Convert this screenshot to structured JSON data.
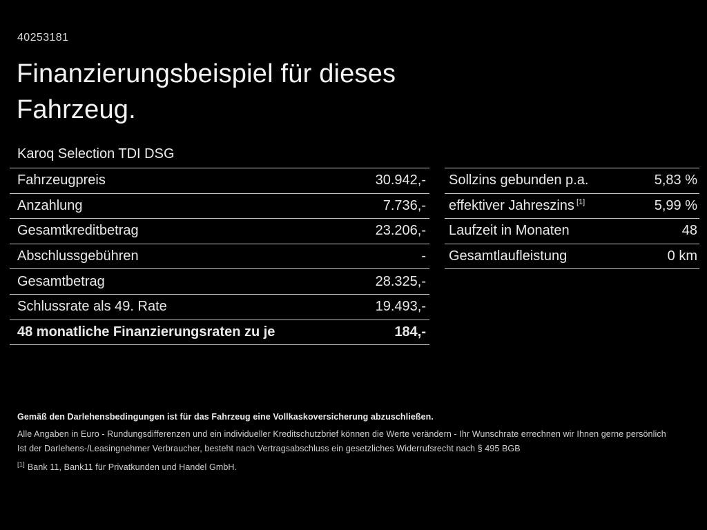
{
  "page": {
    "id_number": "40253181",
    "title_line1": "Finanzierungsbeispiel für dieses",
    "title_line2": "Fahrzeug.",
    "subtitle": "Karoq Selection TDI DSG"
  },
  "left_table": {
    "rows": [
      {
        "label": "Fahrzeugpreis",
        "value": "30.942,-",
        "bold": false
      },
      {
        "label": "Anzahlung",
        "value": "7.736,-",
        "bold": false
      },
      {
        "label": "Gesamtkreditbetrag",
        "value": "23.206,-",
        "bold": false
      },
      {
        "label": "Abschlussgebühren",
        "value": "-",
        "bold": false
      },
      {
        "label": "Gesamtbetrag",
        "value": "28.325,-",
        "bold": false
      },
      {
        "label": "Schlussrate als 49. Rate",
        "value": "19.493,-",
        "bold": false
      },
      {
        "label": "48 monatliche Finanzierungsraten zu je",
        "value": "184,-",
        "bold": true
      }
    ]
  },
  "right_table": {
    "rows": [
      {
        "label": "Sollzins gebunden p.a.",
        "value": "5,83 %",
        "bold": false
      },
      {
        "label": "effektiver Jahreszins",
        "label_sup": "[1]",
        "value": "5,99 %",
        "bold": false
      },
      {
        "label": "Laufzeit in Monaten",
        "value": "48",
        "bold": false
      },
      {
        "label": "Gesamtlaufleistung",
        "value": "0 km",
        "bold": false
      }
    ]
  },
  "footer": {
    "insurance_note": "Gemäß den Darlehensbedingungen ist für das Fahrzeug eine Vollkaskoversicherung abzuschließen.",
    "disclaimer1": "Alle Angaben in Euro - Rundungsdifferenzen und ein individueller Kreditschutzbrief können die Werte verändern - Ihr Wunschrate errechnen wir Ihnen gerne persönlich",
    "disclaimer2": "Ist der Darlehens-/Leasingnehmer Verbraucher, besteht nach Vertragsabschluss ein gesetzliches Widerrufsrecht nach § 495 BGB",
    "footnote_marker": "[1]",
    "footnote_text": "Bank 11, Bank11 für Privatkunden und Handel GmbH."
  },
  "colors": {
    "background": "#000000",
    "text": "#e9e9e9",
    "divider": "#c4c4c4"
  }
}
